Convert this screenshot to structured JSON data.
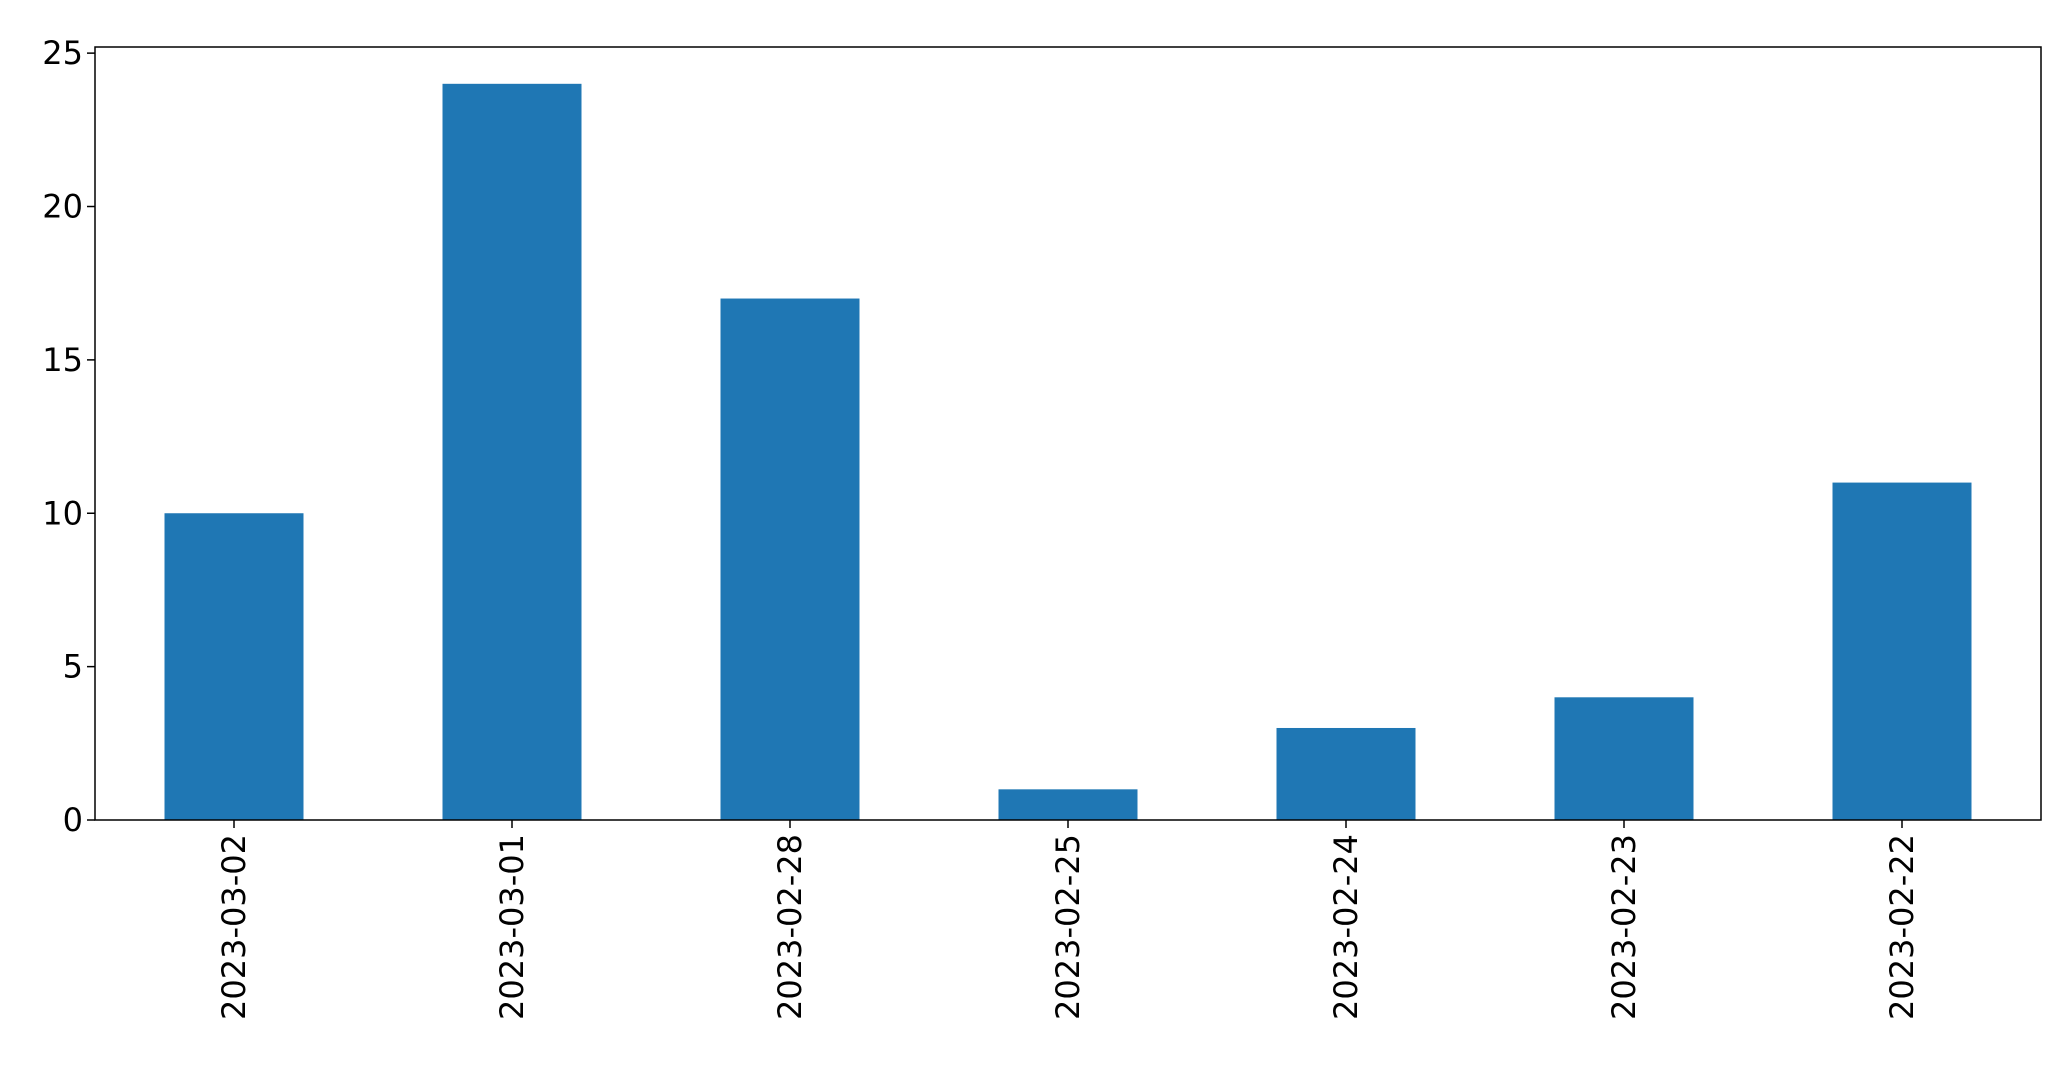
{
  "chart_data": {
    "type": "bar",
    "categories": [
      "2023-03-02",
      "2023-03-01",
      "2023-02-28",
      "2023-02-25",
      "2023-02-24",
      "2023-02-23",
      "2023-02-22"
    ],
    "series": [
      {
        "values": [
          10,
          24,
          17,
          1,
          3,
          4,
          11
        ],
        "color": "#1f77b4"
      }
    ],
    "title": "",
    "xlabel": "",
    "ylabel": "",
    "ylim": [
      0,
      25.2
    ],
    "yticks": [
      0,
      5,
      10,
      15,
      20,
      25
    ],
    "xtick_rotation": "vertical",
    "grid": false,
    "legend": "none"
  }
}
